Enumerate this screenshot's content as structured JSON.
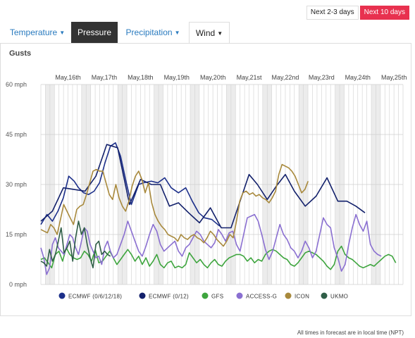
{
  "range_toggle": {
    "short_label": "Next 2-3 days",
    "long_label": "Next 10 days"
  },
  "tabs": [
    {
      "label": "Temperature",
      "caret": "▼"
    },
    {
      "label": "Pressure",
      "caret": ""
    },
    {
      "label": "Precipitation",
      "caret": "▼"
    },
    {
      "label": "Wind",
      "caret": "▼"
    }
  ],
  "section_title": "Gusts",
  "footer_note": "All times in forecast are in local time (NPT)",
  "colors": {
    "accent": "#e8314f",
    "tab_blue": "#2a7bbf",
    "tab_dark": "#333333"
  },
  "chart_data": {
    "type": "line",
    "title": "",
    "xlabel": "",
    "ylabel": "",
    "x_start": "May,15th 18:00",
    "x_end": "May,25th 18:00",
    "xlim": [
      0,
      10
    ],
    "x_ticks": [
      "May,16th",
      "May,17th",
      "May,18th",
      "May,19th",
      "May,20th",
      "May,21st",
      "May,22nd",
      "May,23rd",
      "May,24th",
      "May,25th"
    ],
    "y_ticks": [
      {
        "label": "0 mph",
        "value": 0
      },
      {
        "label": "15 mph",
        "value": 15
      },
      {
        "label": "30 mph",
        "value": 30
      },
      {
        "label": "45 mph",
        "value": 45
      },
      {
        "label": "60 mph",
        "value": 60
      }
    ],
    "ylim": [
      0,
      60
    ],
    "grid": true,
    "legend_position": "bottom",
    "series": [
      {
        "name": "ECMWF (0/6/12/18)",
        "color": "#1c2f8a",
        "x": [
          0.0,
          0.17,
          0.32,
          0.47,
          0.62,
          0.77,
          0.92,
          1.04,
          1.18,
          1.32,
          1.47,
          1.62,
          1.77,
          1.92,
          2.06,
          2.2,
          2.35,
          2.5,
          2.7,
          2.83,
          3.05,
          3.23,
          3.42,
          3.6,
          3.8,
          4.0,
          4.18,
          4.36,
          4.52,
          4.72,
          4.94
        ],
        "y": [
          18.0,
          21.0,
          19.0,
          22.0,
          26.0,
          32.5,
          31.0,
          29.0,
          27.5,
          27.0,
          28.0,
          30.5,
          36.5,
          41.5,
          42.5,
          38.5,
          31.0,
          24.0,
          30.0,
          30.5,
          31.0,
          30.5,
          32.0,
          29.0,
          27.5,
          29.0,
          25.0,
          21.5,
          20.0,
          19.5,
          17.5
        ]
      },
      {
        "name": "ECMWF (0/12)",
        "color": "#12206b",
        "x": [
          0.0,
          0.32,
          0.62,
          0.92,
          1.22,
          1.52,
          1.82,
          2.12,
          2.45,
          2.75,
          3.05,
          3.3,
          3.55,
          3.8,
          4.08,
          4.38,
          4.68,
          4.98,
          5.25,
          5.5,
          5.75,
          5.98,
          6.25,
          6.5,
          6.75,
          7.0,
          7.3,
          7.6,
          7.9,
          8.2,
          8.45,
          8.7,
          8.95
        ],
        "y": [
          19.0,
          22.0,
          29.0,
          28.5,
          28.0,
          32.5,
          42.0,
          41.0,
          24.0,
          31.5,
          30.0,
          30.0,
          23.5,
          24.5,
          21.5,
          18.5,
          23.0,
          17.0,
          17.0,
          25.0,
          33.0,
          30.0,
          25.5,
          29.5,
          33.0,
          28.0,
          23.5,
          26.5,
          32.0,
          25.0,
          25.0,
          23.5,
          21.5
        ]
      },
      {
        "name": "GFS",
        "color": "#3ea53e",
        "x": [
          0.0,
          0.1,
          0.2,
          0.3,
          0.4,
          0.5,
          0.6,
          0.7,
          0.8,
          0.9,
          1.0,
          1.1,
          1.2,
          1.3,
          1.4,
          1.5,
          1.6,
          1.7,
          1.8,
          1.9,
          2.0,
          2.1,
          2.2,
          2.3,
          2.4,
          2.5,
          2.6,
          2.7,
          2.8,
          2.9,
          3.0,
          3.1,
          3.2,
          3.3,
          3.4,
          3.5,
          3.6,
          3.7,
          3.8,
          3.9,
          4.0,
          4.1,
          4.2,
          4.3,
          4.4,
          4.5,
          4.6,
          4.7,
          4.8,
          4.9,
          5.0,
          5.1,
          5.2,
          5.3,
          5.4,
          5.5,
          5.6,
          5.7,
          5.8,
          5.9,
          6.0,
          6.1,
          6.2,
          6.3,
          6.4,
          6.5,
          6.6,
          6.7,
          6.8,
          6.9,
          7.0,
          7.1,
          7.2,
          7.3,
          7.4,
          7.5,
          7.6,
          7.7,
          7.8,
          7.9,
          8.0,
          8.1,
          8.2,
          8.3,
          8.4,
          8.5,
          8.6,
          8.7,
          8.8,
          8.9,
          9.0,
          9.1,
          9.2,
          9.3,
          9.4,
          9.5,
          9.6,
          9.7,
          9.8
        ],
        "y": [
          7.5,
          8.0,
          6.5,
          5.0,
          9.0,
          10.0,
          7.0,
          11.0,
          9.0,
          8.0,
          7.5,
          8.0,
          10.0,
          9.0,
          7.0,
          10.5,
          6.5,
          7.0,
          8.5,
          10.0,
          8.0,
          6.0,
          7.5,
          9.0,
          10.5,
          9.0,
          7.0,
          8.5,
          6.0,
          8.0,
          5.5,
          7.0,
          9.0,
          6.0,
          5.0,
          6.5,
          7.0,
          5.0,
          5.5,
          5.0,
          6.0,
          9.5,
          8.0,
          6.5,
          7.5,
          6.0,
          5.0,
          6.5,
          7.5,
          6.0,
          5.5,
          7.0,
          8.0,
          8.5,
          9.0,
          9.0,
          8.5,
          7.0,
          8.0,
          6.5,
          7.5,
          7.0,
          9.0,
          10.0,
          10.5,
          10.0,
          9.0,
          8.0,
          7.5,
          6.0,
          5.5,
          6.5,
          8.0,
          9.5,
          10.0,
          9.5,
          9.0,
          8.0,
          7.0,
          5.5,
          4.5,
          6.0,
          10.0,
          11.5,
          9.0,
          8.0,
          7.5,
          6.5,
          5.5,
          5.0,
          5.5,
          6.0,
          5.5,
          6.5,
          7.5,
          8.5,
          9.0,
          8.5,
          6.5
        ]
      },
      {
        "name": "ACCESS-G",
        "color": "#8a6fd1",
        "x": [
          0.0,
          0.08,
          0.16,
          0.24,
          0.32,
          0.4,
          0.48,
          0.56,
          0.64,
          0.72,
          0.8,
          0.88,
          0.96,
          1.04,
          1.12,
          1.2,
          1.28,
          1.36,
          1.44,
          1.52,
          1.6,
          1.68,
          1.76,
          1.84,
          1.92,
          2.0,
          2.1,
          2.2,
          2.3,
          2.4,
          2.5,
          2.6,
          2.7,
          2.8,
          2.9,
          3.0,
          3.1,
          3.2,
          3.3,
          3.4,
          3.5,
          3.6,
          3.7,
          3.8,
          3.9,
          4.0,
          4.1,
          4.2,
          4.3,
          4.4,
          4.5,
          4.6,
          4.7,
          4.8,
          4.9,
          5.0,
          5.1,
          5.2,
          5.3,
          5.4,
          5.5,
          5.6,
          5.7,
          5.8,
          5.9,
          6.0,
          6.1,
          6.2,
          6.3,
          6.4,
          6.5,
          6.6,
          6.7,
          6.8,
          6.9,
          7.0,
          7.1,
          7.2,
          7.3,
          7.4,
          7.5,
          7.6,
          7.7,
          7.8,
          7.9,
          8.0,
          8.1,
          8.2,
          8.3,
          8.4,
          8.5,
          8.6,
          8.7,
          8.8,
          8.9,
          9.0,
          9.1,
          9.2,
          9.3,
          9.4
        ],
        "y": [
          11.0,
          8.0,
          3.0,
          5.0,
          12.0,
          14.0,
          11.0,
          10.0,
          9.0,
          12.0,
          15.0,
          14.0,
          11.0,
          9.0,
          13.0,
          17.0,
          16.0,
          12.0,
          10.0,
          8.0,
          8.5,
          6.0,
          11.0,
          13.0,
          10.0,
          8.0,
          9.0,
          12.0,
          15.0,
          19.0,
          16.0,
          13.0,
          10.0,
          8.5,
          11.5,
          15.0,
          18.0,
          16.0,
          12.0,
          10.0,
          11.0,
          12.0,
          13.0,
          10.0,
          8.5,
          11.0,
          12.0,
          14.0,
          16.0,
          15.0,
          13.0,
          12.0,
          11.0,
          12.5,
          16.5,
          15.0,
          13.0,
          15.5,
          16.0,
          12.0,
          10.0,
          15.0,
          20.0,
          20.5,
          21.0,
          19.0,
          15.0,
          10.5,
          7.5,
          10.0,
          14.0,
          18.0,
          15.0,
          13.5,
          11.0,
          10.0,
          8.0,
          10.0,
          13.0,
          11.0,
          8.0,
          10.0,
          15.0,
          20.0,
          18.0,
          17.0,
          11.0,
          8.0,
          4.0,
          6.0,
          12.0,
          17.0,
          21.0,
          18.0,
          16.0,
          19.0,
          12.0,
          10.0,
          9.0,
          8.5
        ]
      },
      {
        "name": "ICON",
        "color": "#a8893c",
        "x": [
          0.0,
          0.09,
          0.18,
          0.27,
          0.36,
          0.45,
          0.54,
          0.63,
          0.72,
          0.81,
          0.9,
          0.99,
          1.08,
          1.17,
          1.26,
          1.35,
          1.44,
          1.53,
          1.62,
          1.71,
          1.8,
          1.89,
          1.98,
          2.07,
          2.16,
          2.25,
          2.34,
          2.43,
          2.52,
          2.61,
          2.7,
          2.79,
          2.88,
          2.97,
          3.06,
          3.15,
          3.24,
          3.33,
          3.42,
          3.51,
          3.6,
          3.69,
          3.78,
          3.87,
          3.96,
          4.05,
          4.14,
          4.23,
          4.32,
          4.41,
          4.5,
          4.59,
          4.68,
          4.77,
          4.86,
          4.95,
          5.04,
          5.13,
          5.22,
          5.31,
          5.4,
          5.49,
          5.58,
          5.67,
          5.76,
          5.85,
          5.94,
          6.03,
          6.12,
          6.21,
          6.3,
          6.39,
          6.48,
          6.57,
          6.66,
          6.75,
          6.84,
          6.93,
          7.02,
          7.11,
          7.2,
          7.29,
          7.38
        ],
        "y": [
          16.5,
          16.0,
          15.5,
          18.0,
          17.0,
          15.0,
          19.5,
          24.0,
          22.0,
          20.0,
          18.0,
          22.5,
          23.5,
          24.0,
          27.0,
          30.5,
          34.0,
          34.5,
          34.0,
          34.0,
          30.5,
          27.0,
          25.5,
          30.0,
          26.0,
          23.5,
          22.0,
          25.0,
          29.5,
          32.5,
          34.0,
          31.5,
          27.5,
          30.5,
          24.5,
          21.0,
          19.0,
          17.5,
          16.5,
          15.0,
          14.5,
          14.0,
          13.0,
          15.0,
          14.0,
          13.5,
          14.5,
          15.0,
          14.0,
          13.5,
          12.5,
          14.0,
          16.0,
          15.0,
          13.5,
          12.5,
          11.5,
          13.0,
          15.0,
          14.0,
          19.0,
          25.0,
          27.5,
          28.0,
          27.0,
          27.5,
          26.5,
          27.0,
          26.0,
          25.5,
          24.5,
          26.0,
          28.0,
          33.0,
          36.0,
          35.5,
          35.0,
          34.0,
          32.5,
          30.0,
          27.5,
          28.5,
          31.0
        ]
      },
      {
        "name": "UKMO",
        "color": "#2f5e47",
        "x": [
          0.0,
          0.08,
          0.16,
          0.24,
          0.32,
          0.4,
          0.48,
          0.56,
          0.64,
          0.72,
          0.8,
          0.88,
          0.96,
          1.04,
          1.12,
          1.2,
          1.28,
          1.36,
          1.44,
          1.52,
          1.6,
          1.68,
          1.76,
          1.84,
          1.92
        ],
        "y": [
          7.0,
          6.5,
          5.5,
          10.5,
          7.0,
          9.0,
          13.0,
          17.0,
          9.5,
          11.0,
          13.0,
          7.0,
          14.0,
          19.0,
          15.0,
          17.0,
          12.0,
          8.0,
          5.0,
          12.0,
          13.0,
          9.0,
          10.0,
          9.0,
          8.5
        ]
      }
    ]
  }
}
